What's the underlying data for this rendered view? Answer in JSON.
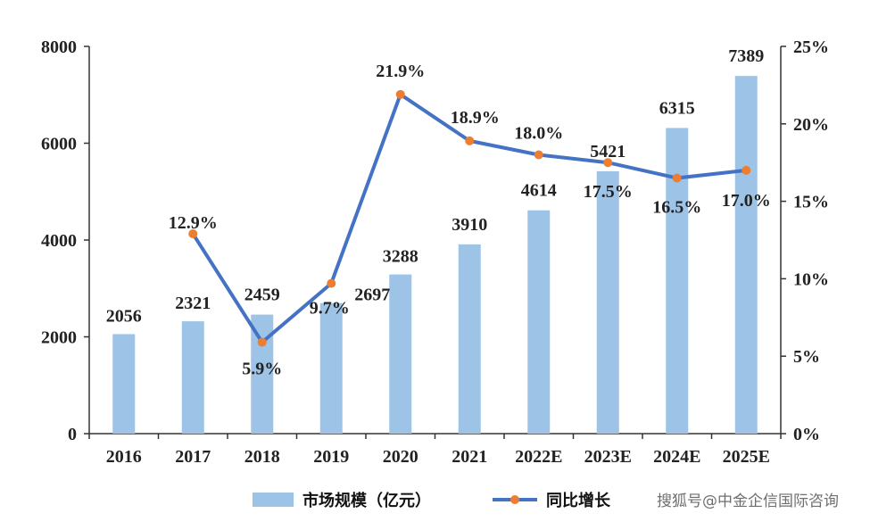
{
  "chart_data": {
    "type": "bar",
    "categories": [
      "2016",
      "2017",
      "2018",
      "2019",
      "2020",
      "2021",
      "2022E",
      "2023E",
      "2024E",
      "2025E"
    ],
    "series": [
      {
        "name": "市场规模（亿元）",
        "type": "bar",
        "axis": "left",
        "values": [
          2056,
          2321,
          2459,
          2697,
          3288,
          3910,
          4614,
          5421,
          6315,
          7389
        ],
        "labels": [
          "2056",
          "2321",
          "2459",
          "2697",
          "3288",
          "3910",
          "4614",
          "5421",
          "6315",
          "7389"
        ]
      },
      {
        "name": "同比增长",
        "type": "line",
        "axis": "right",
        "values": [
          null,
          12.9,
          5.9,
          9.7,
          21.9,
          18.9,
          18.0,
          17.5,
          16.5,
          17.0
        ],
        "labels": [
          "",
          "12.9%",
          "5.9%",
          "9.7%",
          "21.9%",
          "18.9%",
          "18.0%",
          "17.5%",
          "16.5%",
          "17.0%"
        ]
      }
    ],
    "y_left": {
      "min": 0,
      "max": 8000,
      "ticks": [
        "0",
        "2000",
        "4000",
        "6000",
        "8000"
      ]
    },
    "y_right": {
      "min": 0,
      "max": 25,
      "ticks": [
        "0%",
        "5%",
        "10%",
        "15%",
        "20%",
        "25%"
      ]
    },
    "grid": false,
    "legend_position": "bottom",
    "colors": {
      "bar": "#9dc3e6",
      "line": "#4472c4",
      "marker": "#ed7d31"
    }
  },
  "watermark": "搜狐号@中金企信国际咨询"
}
